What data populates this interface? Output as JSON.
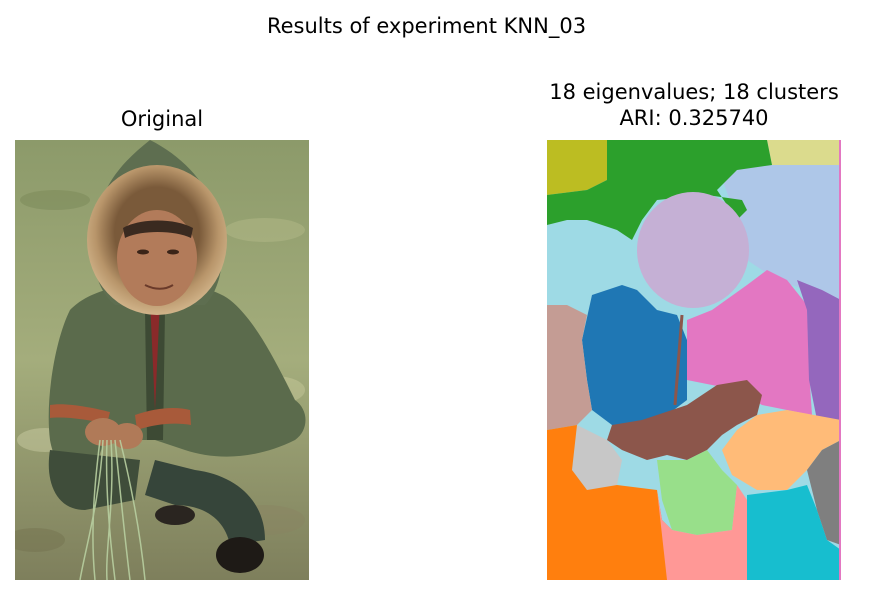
{
  "figure": {
    "suptitle": "Results of experiment KNN_03"
  },
  "panels": {
    "original": {
      "title": "Original"
    },
    "segmentation": {
      "title_line1": "18 eigenvalues; 18 clusters",
      "title_line2": "ARI: 0.325740"
    }
  },
  "palette": {
    "olive": "#bcbd22",
    "green": "#2ca02c",
    "khaki": "#dbdb8d",
    "light_blue": "#aec7e8",
    "cyan_light": "#9edae5",
    "lavender": "#c5b0d5",
    "blue": "#1f77b4",
    "pink": "#e377c2",
    "purple": "#9467bd",
    "rose": "#c49c94",
    "brown": "#8c564b",
    "orange": "#ff7f0e",
    "gray_light": "#c7c7c7",
    "light_green": "#98df8a",
    "peach": "#ffbb78",
    "salmon": "#ff9896",
    "cyan": "#17becf",
    "gray": "#7f7f7f"
  }
}
